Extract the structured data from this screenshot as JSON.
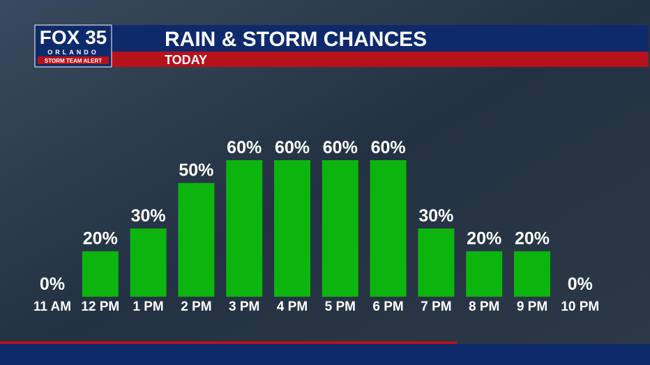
{
  "logo": {
    "brand": "FOX 35",
    "city": "ORLANDO",
    "tag": "STORM TEAM ALERT"
  },
  "chart_data": {
    "type": "bar",
    "title": "RAIN & STORM CHANCES",
    "subtitle": "TODAY",
    "categories": [
      "11 AM",
      "12 PM",
      "1 PM",
      "2 PM",
      "3 PM",
      "4 PM",
      "5 PM",
      "6 PM",
      "7 PM",
      "8 PM",
      "9 PM",
      "10 PM"
    ],
    "values": [
      0,
      20,
      30,
      50,
      60,
      60,
      60,
      60,
      30,
      20,
      20,
      0
    ],
    "value_labels": [
      "0%",
      "20%",
      "30%",
      "50%",
      "60%",
      "60%",
      "60%",
      "60%",
      "30%",
      "20%",
      "20%",
      "0%"
    ],
    "color": "#0db40d"
  }
}
